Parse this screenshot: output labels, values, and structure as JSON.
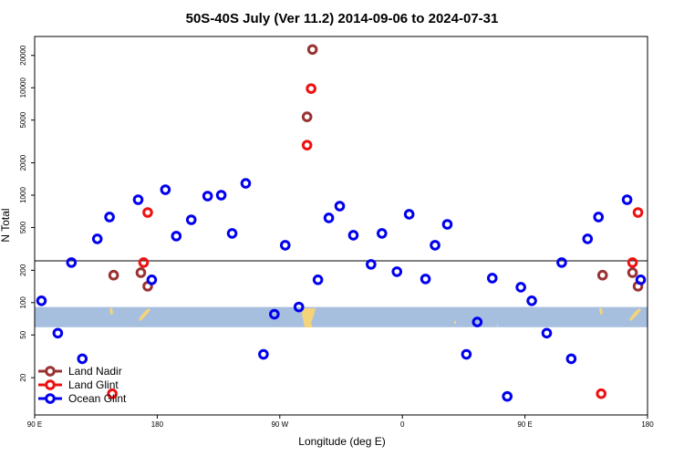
{
  "chart_data": {
    "type": "scatter",
    "title": "50S-40S July (Ver 11.2)   2014-09-06 to 2024-07-31",
    "xlabel": "Longitude (deg E)",
    "ylabel": "N Total",
    "xlim": [
      90,
      540
    ],
    "xticks": [
      {
        "value": 90,
        "label": "90 E"
      },
      180,
      {
        "value": 270,
        "label": "90 W"
      },
      {
        "value": 360,
        "label": "0"
      },
      {
        "value": 450,
        "label": "90 E"
      },
      {
        "value": 540,
        "label": "180"
      }
    ],
    "ylim": [
      9,
      30000
    ],
    "yscale": "log",
    "yticks": [
      20,
      50,
      100,
      200,
      500,
      1000,
      2000,
      5000,
      10000,
      20000
    ],
    "reference_line": 245,
    "band": [
      59,
      91
    ],
    "band_color": "#a7bfdf",
    "legend": "lower left",
    "series": [
      {
        "name": "Land Nadir",
        "color": "#993333",
        "x": [
          148,
          168,
          173,
          290,
          294,
          507,
          529,
          533
        ],
        "values": [
          180,
          190,
          142,
          5360,
          22700,
          180,
          190,
          142
        ]
      },
      {
        "name": "Land Glint",
        "color": "#ee1111",
        "x": [
          147,
          170,
          173,
          290,
          293,
          506,
          529,
          533
        ],
        "values": [
          14.2,
          236,
          690,
          2920,
          9820,
          14.2,
          236,
          690
        ]
      },
      {
        "name": "Ocean Glint",
        "color": "#0000ee",
        "x": [
          95,
          107,
          117,
          125,
          136,
          145,
          166,
          176,
          186,
          194,
          205,
          217,
          227,
          235,
          245,
          258,
          266,
          274,
          284,
          298,
          306,
          314,
          324,
          337,
          345,
          356,
          365,
          377,
          384,
          393,
          407,
          415,
          426,
          437,
          447,
          455,
          466,
          477,
          484,
          496,
          504,
          525,
          535
        ],
        "values": [
          104,
          52,
          236,
          30,
          392,
          626,
          907,
          163,
          1124,
          416,
          590,
          981,
          1000,
          441,
          1288,
          33,
          78,
          342,
          91,
          163,
          614,
          791,
          424,
          227,
          441,
          194,
          664,
          166,
          342,
          535,
          33,
          66,
          169,
          13.4,
          139,
          104,
          52,
          236,
          30,
          392,
          626,
          907,
          163
        ]
      }
    ]
  }
}
